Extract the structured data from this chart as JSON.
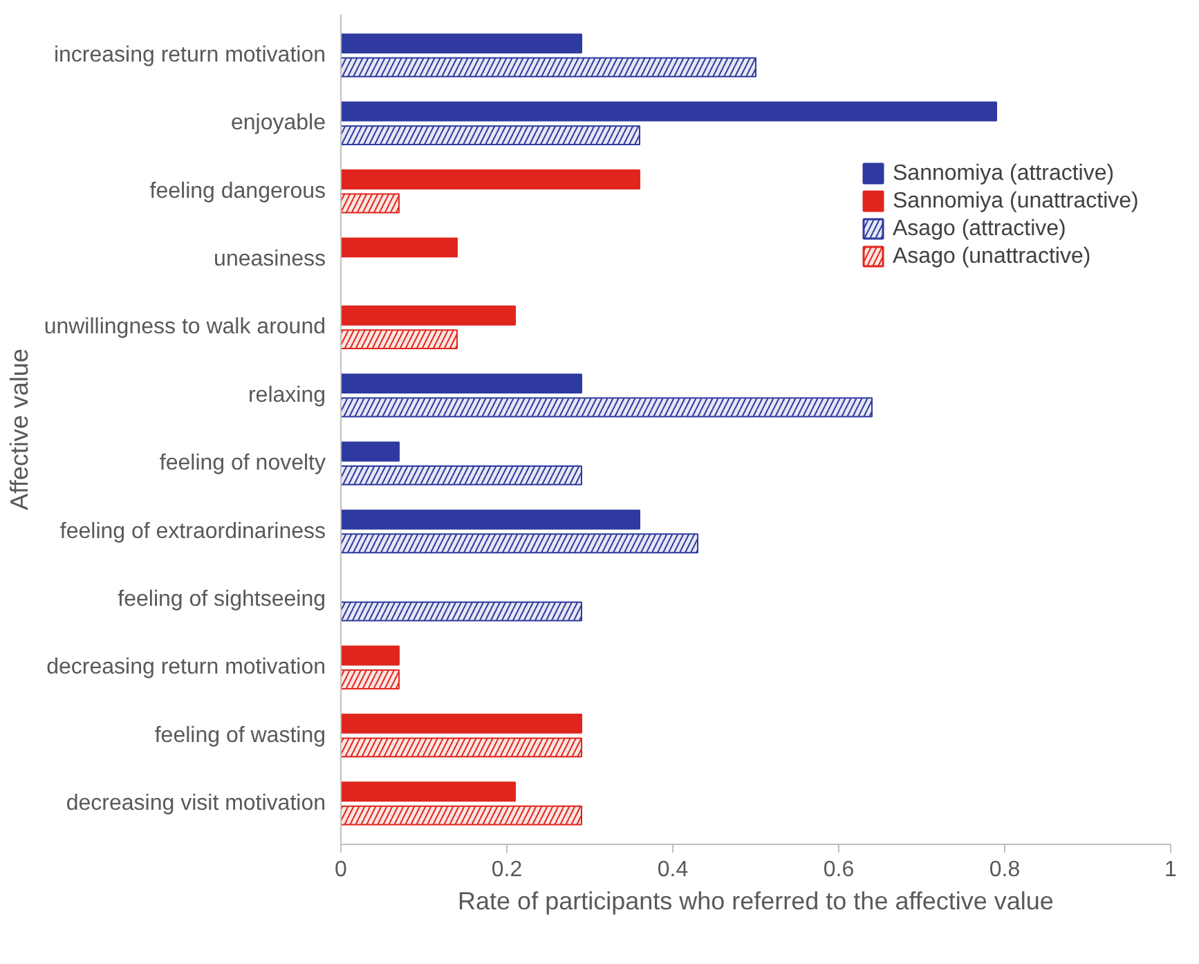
{
  "chart_data": {
    "type": "bar",
    "orientation": "horizontal",
    "categories": [
      "increasing return motivation",
      "enjoyable",
      "feeling dangerous",
      "uneasiness",
      "unwillingness to walk around",
      "relaxing",
      "feeling of novelty",
      "feeling of extraordinariness",
      "feeling of sightseeing",
      "decreasing return motivation",
      "feeling of wasting",
      "decreasing visit motivation"
    ],
    "series": [
      {
        "name": "Sannomiya (attractive)",
        "color": "#2e3aa0",
        "values": [
          0.29,
          0.79,
          null,
          null,
          null,
          0.29,
          0.07,
          0.36,
          null,
          null,
          null,
          null
        ]
      },
      {
        "name": "Sannomiya (unattractive)",
        "color": "#e0261c",
        "values": [
          null,
          null,
          0.36,
          0.14,
          0.21,
          null,
          null,
          null,
          null,
          0.07,
          0.29,
          0.21
        ]
      },
      {
        "name": "Asago (attractive)",
        "color": "#2e3aa0",
        "values": [
          0.5,
          0.36,
          null,
          null,
          null,
          0.64,
          0.29,
          0.43,
          0.29,
          null,
          null,
          null
        ]
      },
      {
        "name": "Asago (unattractive)",
        "color": "#e0261c",
        "values": [
          null,
          null,
          0.07,
          null,
          0.14,
          null,
          null,
          null,
          null,
          0.07,
          0.29,
          0.29
        ]
      }
    ],
    "xlim": [
      0,
      1
    ],
    "xticks": [
      0,
      0.2,
      0.4,
      0.6,
      0.8,
      1
    ],
    "xlabel": "Rate of participants who referred to the affective value",
    "ylabel": "Affective value",
    "legend": "top right",
    "grid": false
  }
}
